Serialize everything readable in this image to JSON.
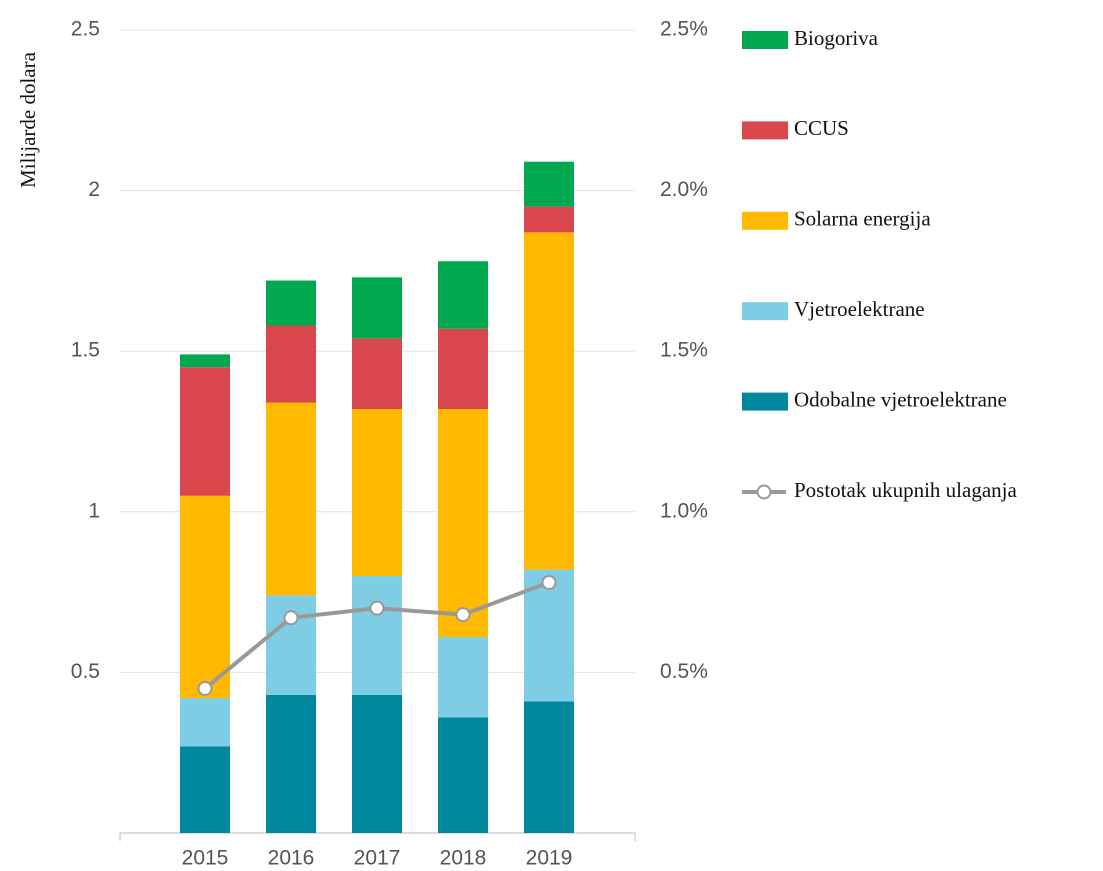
{
  "chart_data": {
    "type": "bar",
    "stacked": true,
    "y_label": "Milijarde dolara",
    "categories": [
      "2015",
      "2016",
      "2017",
      "2018",
      "2019"
    ],
    "series": [
      {
        "name": "Odobalne vjetroelektrane",
        "color": "#00889e",
        "values": [
          0.27,
          0.43,
          0.43,
          0.36,
          0.41
        ]
      },
      {
        "name": "Vjetroelektrane",
        "color": "#7fcde4",
        "values": [
          0.15,
          0.31,
          0.37,
          0.25,
          0.41
        ]
      },
      {
        "name": "Solarna energija",
        "color": "#ffba00",
        "values": [
          0.63,
          0.6,
          0.52,
          0.71,
          1.05
        ]
      },
      {
        "name": "CCUS",
        "color": "#d9464b",
        "values": [
          0.4,
          0.24,
          0.22,
          0.25,
          0.08
        ]
      },
      {
        "name": "Biogoriva",
        "color": "#00a94f",
        "values": [
          0.04,
          0.14,
          0.19,
          0.21,
          0.14
        ]
      },
      {
        "name": "Postotak ukupnih ulaganja",
        "type": "line",
        "axis": "y2",
        "color": "#999999",
        "values": [
          0.45,
          0.67,
          0.7,
          0.68,
          0.78
        ]
      }
    ],
    "ylim": [
      0,
      2.5
    ],
    "yticks": [
      0.5,
      1.0,
      1.5,
      2.0,
      2.5
    ],
    "y2lim": [
      0,
      2.5
    ],
    "y2ticks": [
      {
        "value": 0.5,
        "label": "0.5%"
      },
      {
        "value": 1.0,
        "label": "1.0%"
      },
      {
        "value": 1.5,
        "label": "1.5%"
      },
      {
        "value": 2.0,
        "label": "2.0%"
      },
      {
        "value": 2.5,
        "label": "2.5%"
      }
    ],
    "grid": true
  }
}
